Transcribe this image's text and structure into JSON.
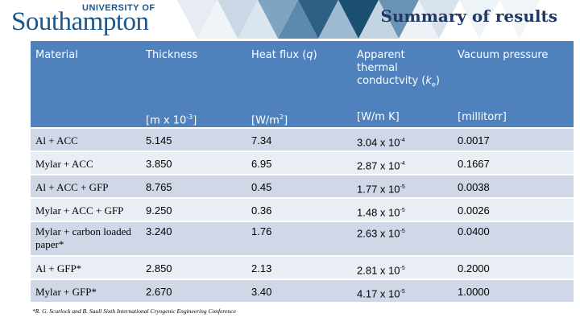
{
  "header": {
    "logo_small": "UNIVERSITY OF",
    "logo_big": "Southampton",
    "title": "Summary of results",
    "colors": {
      "brand_blue": "#1c5588",
      "title_navy": "#1f3864",
      "header_row": "#4f81bd",
      "row_odd": "#d0d8e8",
      "row_even": "#e9edf4"
    }
  },
  "table": {
    "headers": {
      "material": "Material",
      "thickness": "Thickness",
      "heat_flux_prefix": "Heat flux (",
      "heat_flux_var": "q",
      "heat_flux_suffix": ")",
      "conductivity_prefix": "Apparent thermal conductvity (",
      "conductivity_var": "k",
      "conductivity_sub": "e",
      "conductivity_suffix": ")",
      "vacuum": "Vacuum pressure"
    },
    "units": {
      "material": "",
      "thickness_prefix": "[m x 10",
      "thickness_exp": "-3",
      "thickness_suffix": "]",
      "heat_flux_prefix": "[W/m",
      "heat_flux_exp": "2",
      "heat_flux_suffix": "]",
      "conductivity": "[W/m K]",
      "vacuum": "[millitorr]"
    },
    "rows": [
      {
        "material": "Al + ACC",
        "thickness": "5.145",
        "heat_flux": "7.34",
        "k_mant": "3.04 x 10",
        "k_exp": "-4",
        "vacuum": "0.0017"
      },
      {
        "material": "Mylar + ACC",
        "thickness": "3.850",
        "heat_flux": "6.95",
        "k_mant": "2.87 x 10",
        "k_exp": "-4",
        "vacuum": "0.1667"
      },
      {
        "material": "Al + ACC + GFP",
        "thickness": "8.765",
        "heat_flux": "0.45",
        "k_mant": "1.77 x 10",
        "k_exp": "-5",
        "vacuum": "0.0038"
      },
      {
        "material": "Mylar + ACC + GFP",
        "thickness": "9.250",
        "heat_flux": "0.36",
        "k_mant": "1.48 x 10",
        "k_exp": "-5",
        "vacuum": "0.0026"
      },
      {
        "material": "Mylar + carbon loaded paper*",
        "thickness": "3.240",
        "heat_flux": "1.76",
        "k_mant": "2.63 x 10",
        "k_exp": "-5",
        "vacuum": "0.0400"
      },
      {
        "material": "Al + GFP*",
        "thickness": "2.850",
        "heat_flux": "2.13",
        "k_mant": "2.81 x 10",
        "k_exp": "-5",
        "vacuum": "0.2000"
      },
      {
        "material": "Mylar + GFP*",
        "thickness": "2.670",
        "heat_flux": "3.40",
        "k_mant": "4.17 x 10",
        "k_exp": "-5",
        "vacuum": "1.0000"
      }
    ]
  },
  "footnote": "*R. G. Scurlock and B. Saull Sixth International Cryogenic Engineering Conference"
}
